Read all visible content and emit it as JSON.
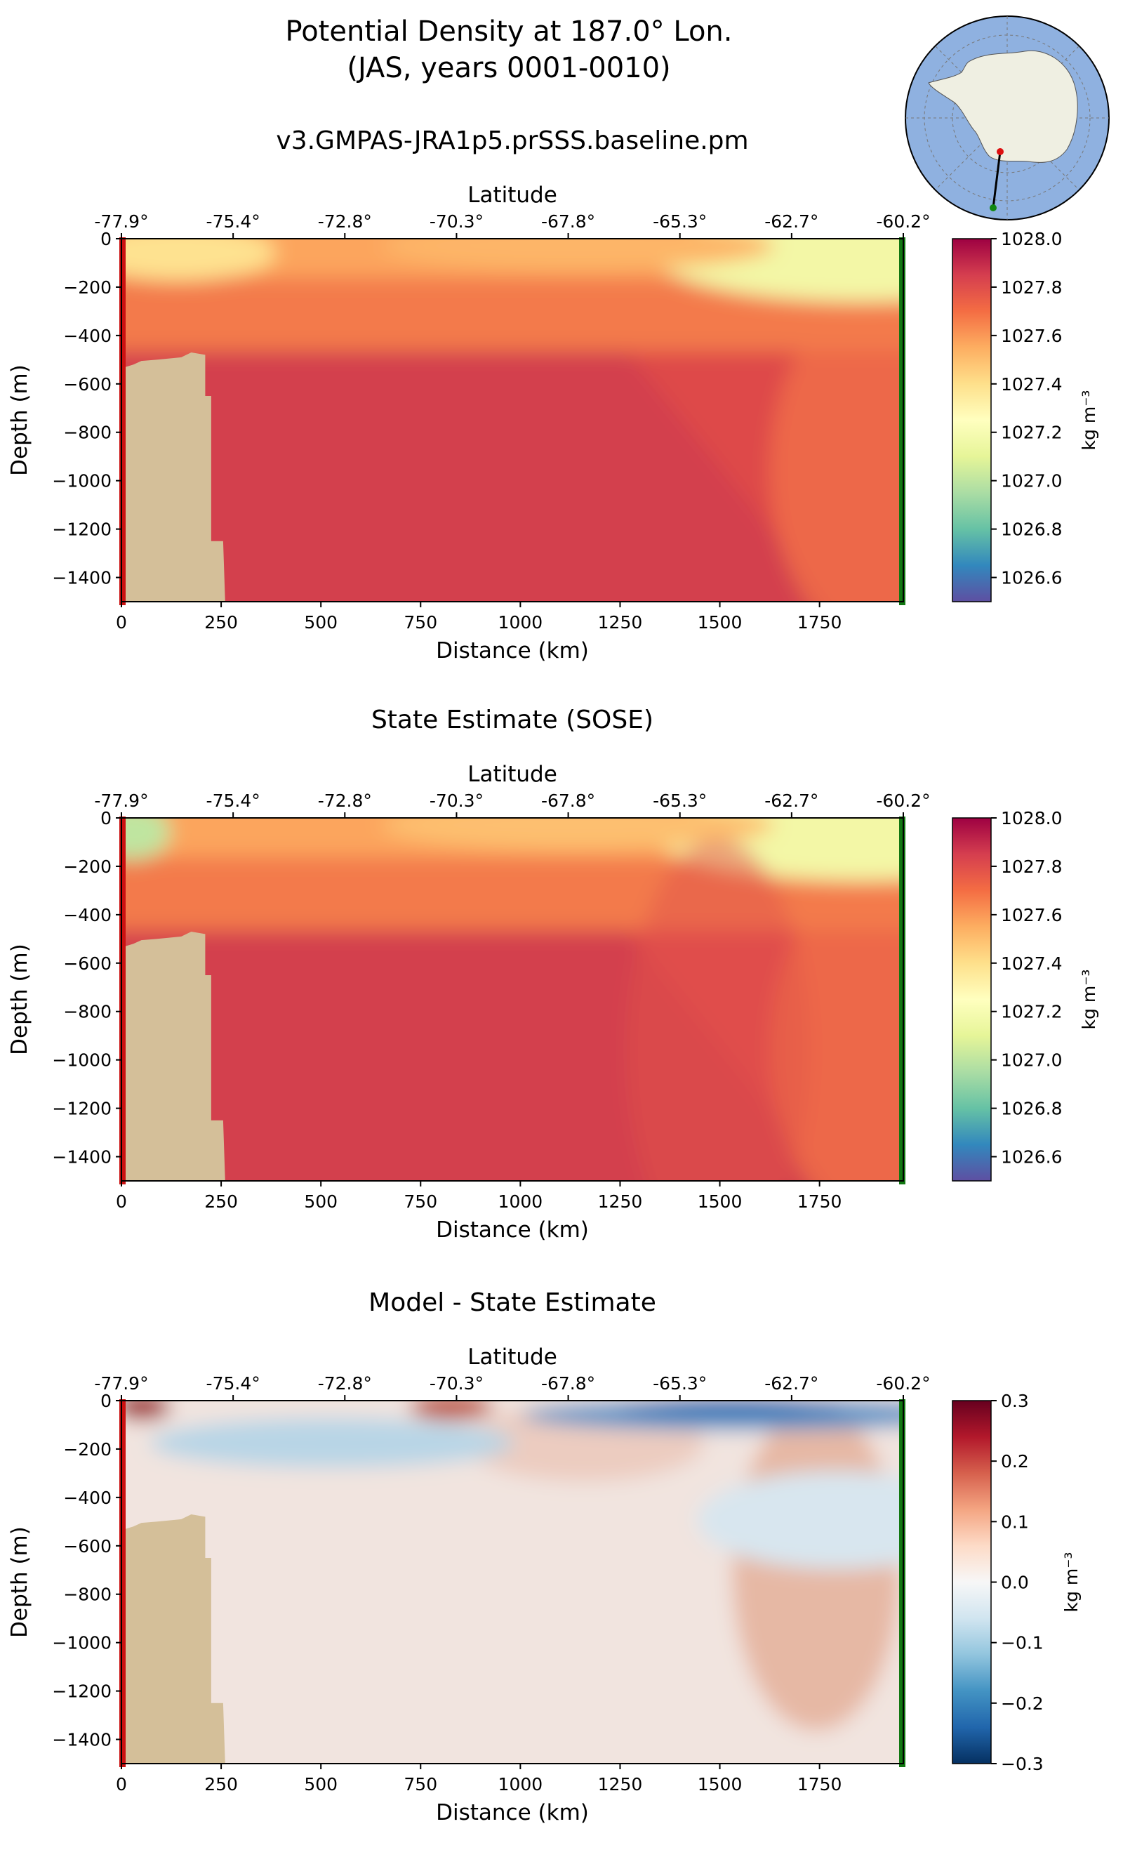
{
  "figure": {
    "title_line1": "Potential Density at 187.0° Lon.",
    "title_line2": "(JAS, years 0001-0010)"
  },
  "colors": {
    "bathymetry": "#d4bf99",
    "start_marker": "#cc1111",
    "end_marker": "#117711",
    "ocean": "#8fb1e0",
    "land": "#efefe2"
  },
  "inset_map": {
    "type": "south-polar-stereographic",
    "section_start": {
      "lat": -77.9,
      "lon": 187.0,
      "color": "red"
    },
    "section_end": {
      "lat": -60.2,
      "lon": 187.0,
      "color": "green"
    }
  },
  "chart_data": [
    {
      "type": "heatmap",
      "title": "v3.GMPAS-JRA1p5.prSSS.baseline.pm",
      "xlabel": "Distance (km)",
      "ylabel": "Depth (m)",
      "top_xlabel": "Latitude",
      "x_ticks": [
        0,
        250,
        500,
        750,
        1000,
        1250,
        1500,
        1750
      ],
      "y_ticks": [
        0,
        -200,
        -400,
        -600,
        -800,
        -1000,
        -1200,
        -1400
      ],
      "xlim": [
        0,
        1960
      ],
      "ylim": [
        -1500,
        0
      ],
      "lat_tick_labels": [
        "-77.9°",
        "-75.4°",
        "-72.8°",
        "-70.3°",
        "-67.8°",
        "-65.3°",
        "-62.7°",
        "-60.2°"
      ],
      "lat_tick_distance_km": [
        0,
        280,
        560,
        840,
        1120,
        1400,
        1680,
        1960
      ],
      "colormap": "Spectral_r",
      "colorbar": {
        "label": "kg m⁻³",
        "ticks": [
          1028.0,
          1027.8,
          1027.6,
          1027.4,
          1027.2,
          1027.0,
          1026.8,
          1026.6
        ],
        "range": [
          1026.5,
          1028.0
        ]
      },
      "field_summary": {
        "surface_value_range": [
          1027.15,
          1027.6
        ],
        "deep_value": 1027.9
      }
    },
    {
      "type": "heatmap",
      "title": "State Estimate (SOSE)",
      "xlabel": "Distance (km)",
      "ylabel": "Depth (m)",
      "top_xlabel": "Latitude",
      "x_ticks": [
        0,
        250,
        500,
        750,
        1000,
        1250,
        1500,
        1750
      ],
      "y_ticks": [
        0,
        -200,
        -400,
        -600,
        -800,
        -1000,
        -1200,
        -1400
      ],
      "xlim": [
        0,
        1960
      ],
      "ylim": [
        -1500,
        0
      ],
      "lat_tick_labels": [
        "-77.9°",
        "-75.4°",
        "-72.8°",
        "-70.3°",
        "-67.8°",
        "-65.3°",
        "-62.7°",
        "-60.2°"
      ],
      "lat_tick_distance_km": [
        0,
        280,
        560,
        840,
        1120,
        1400,
        1680,
        1960
      ],
      "colormap": "Spectral_r",
      "colorbar": {
        "label": "kg m⁻³",
        "ticks": [
          1028.0,
          1027.8,
          1027.6,
          1027.4,
          1027.2,
          1027.0,
          1026.8,
          1026.6
        ],
        "range": [
          1026.5,
          1028.0
        ]
      },
      "field_summary": {
        "surface_value_range": [
          1027.05,
          1027.5
        ],
        "deep_value": 1027.85
      }
    },
    {
      "type": "heatmap",
      "title": "Model - State Estimate",
      "xlabel": "Distance (km)",
      "ylabel": "Depth (m)",
      "top_xlabel": "Latitude",
      "x_ticks": [
        0,
        250,
        500,
        750,
        1000,
        1250,
        1500,
        1750
      ],
      "y_ticks": [
        0,
        -200,
        -400,
        -600,
        -800,
        -1000,
        -1200,
        -1400
      ],
      "xlim": [
        0,
        1960
      ],
      "ylim": [
        -1500,
        0
      ],
      "lat_tick_labels": [
        "-77.9°",
        "-75.4°",
        "-72.8°",
        "-70.3°",
        "-67.8°",
        "-65.3°",
        "-62.7°",
        "-60.2°"
      ],
      "lat_tick_distance_km": [
        0,
        280,
        560,
        840,
        1120,
        1400,
        1680,
        1960
      ],
      "colormap": "RdBu_r",
      "colorbar": {
        "label": "kg m⁻³",
        "ticks": [
          0.3,
          0.2,
          0.1,
          0.0,
          -0.1,
          -0.2,
          -0.3
        ],
        "range": [
          -0.3,
          0.3
        ]
      },
      "field_summary": {
        "surface_positive_max": 0.2,
        "surface_negative_min": -0.2,
        "deep_anomaly": 0.08
      }
    }
  ],
  "bathymetry_profile_km_depth": [
    [
      0,
      -1500
    ],
    [
      0,
      -560
    ],
    [
      10,
      -530
    ],
    [
      30,
      -520
    ],
    [
      50,
      -505
    ],
    [
      90,
      -500
    ],
    [
      150,
      -490
    ],
    [
      175,
      -470
    ],
    [
      210,
      -480
    ],
    [
      210,
      -650
    ],
    [
      225,
      -650
    ],
    [
      225,
      -1250
    ],
    [
      255,
      -1250
    ],
    [
      260,
      -1500
    ]
  ]
}
